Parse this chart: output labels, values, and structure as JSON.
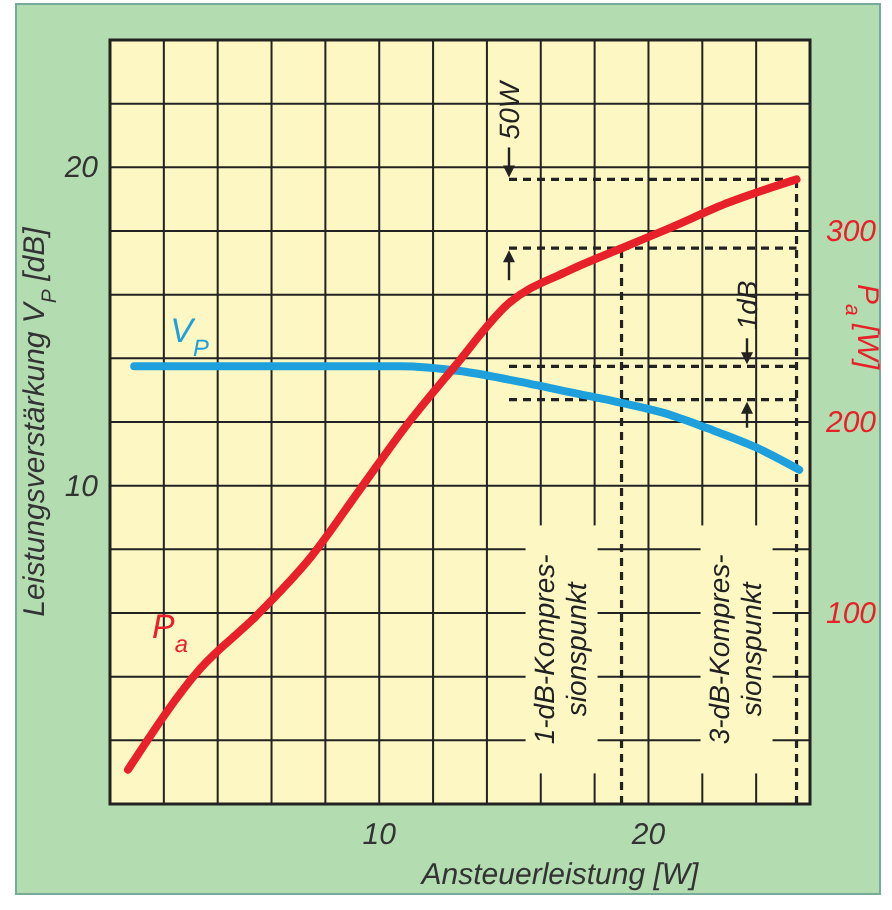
{
  "chart_data": {
    "type": "line",
    "xlabel": "Ansteuerleistung [W]",
    "ylabel": "Leistungsverstärkung V$_{P}$ [dB]",
    "y2label": "P$_{a}$ [W]",
    "xlim": [
      0,
      26
    ],
    "xticks": [
      {
        "value": 0,
        "label": null
      },
      {
        "value": 2,
        "label": null
      },
      {
        "value": 4,
        "label": null
      },
      {
        "value": 6,
        "label": null
      },
      {
        "value": 8,
        "label": null
      },
      10,
      {
        "value": 12,
        "label": null
      },
      {
        "value": 14,
        "label": null
      },
      {
        "value": 16,
        "label": null
      },
      {
        "value": 18,
        "label": null
      },
      20,
      {
        "value": 22,
        "label": null
      },
      {
        "value": 24,
        "label": null
      },
      {
        "value": 26,
        "label": null
      }
    ],
    "ylim": [
      0,
      24
    ],
    "yticks": [
      {
        "value": 0,
        "label": null
      },
      {
        "value": 2,
        "label": null
      },
      {
        "value": 4,
        "label": null
      },
      {
        "value": 6,
        "label": null
      },
      {
        "value": 8,
        "label": null
      },
      10,
      {
        "value": 12,
        "label": null
      },
      {
        "value": 14,
        "label": null
      },
      {
        "value": 16,
        "label": null
      },
      {
        "value": 18,
        "label": null
      },
      20,
      {
        "value": 22,
        "label": null
      },
      {
        "value": 24,
        "label": null
      }
    ],
    "y2lim": [
      0,
      400
    ],
    "y2ticks": [
      100,
      200,
      300
    ],
    "grid": true,
    "line_style": "solid",
    "series": [
      {
        "name": "V$_{P}$",
        "color": "#1ea0dc",
        "x": [
          0.9,
          4,
          8,
          10.8,
          13,
          15,
          17.3,
          19,
          20.5,
          22.2,
          24,
          25.6
        ],
        "values": [
          13.75,
          13.75,
          13.75,
          13.75,
          13.6,
          13.3,
          12.9,
          12.6,
          12.3,
          11.8,
          11.2,
          10.5
        ]
      },
      {
        "name": "P$_{a}$",
        "color": "#e8202a",
        "axis": "y2",
        "x": [
          0.67,
          3.36,
          5.4,
          7.5,
          9.3,
          11,
          12.8,
          14.8,
          17,
          19,
          20.7,
          23,
          25.5
        ],
        "values": [
          18,
          71,
          98,
          130,
          165,
          198,
          229,
          262,
          279,
          291,
          301,
          315,
          327
        ]
      }
    ],
    "ref_lines": [
      {
        "axis": "x",
        "value": 19,
        "label": "1-dB-Kompres-\nsionspunkt",
        "line_style": "dashed",
        "color": "#222222"
      },
      {
        "axis": "x",
        "value": 25.5,
        "label": "3-dB-Kompres-\nsionspunkt",
        "line_style": "dashed",
        "color": "#222222"
      },
      {
        "axis": "y2",
        "value": 327,
        "line_style": "dashed",
        "color": "#222222"
      },
      {
        "axis": "y2",
        "value": 291,
        "line_style": "dashed",
        "color": "#222222"
      },
      {
        "axis": "y",
        "value": 13.75,
        "line_style": "dashed",
        "color": "#222222"
      },
      {
        "axis": "y",
        "value": 12.7,
        "line_style": "dashed",
        "color": "#222222"
      }
    ],
    "annotations": [
      "50W",
      "1dB"
    ]
  }
}
